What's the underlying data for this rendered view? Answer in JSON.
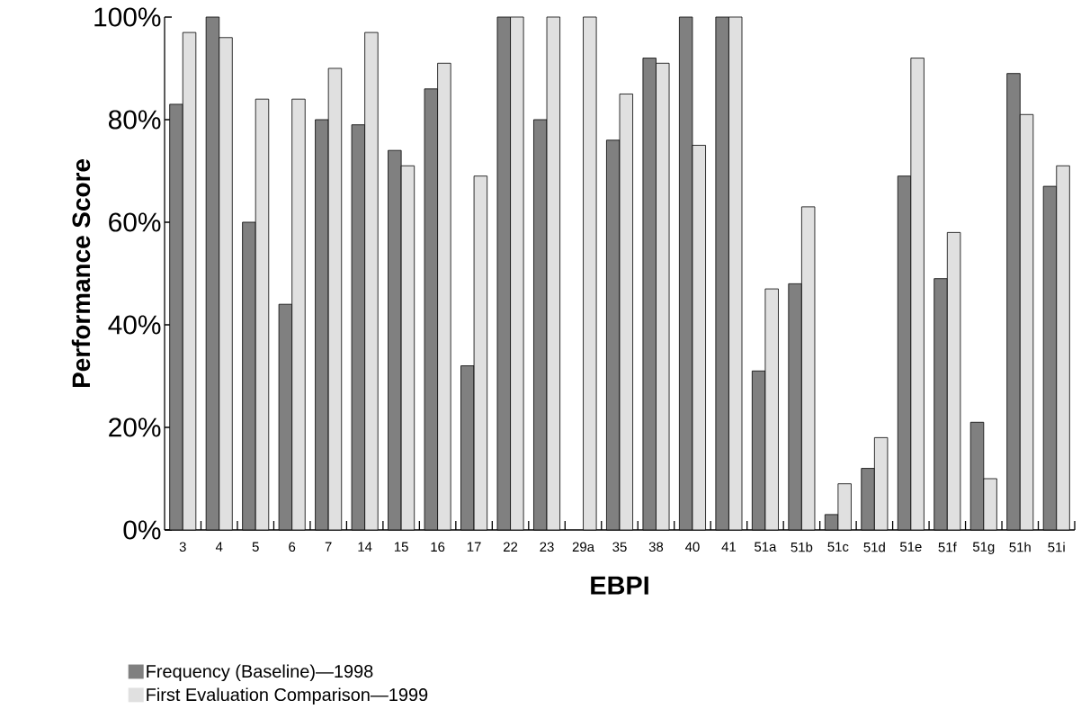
{
  "chart_data": {
    "type": "bar",
    "xlabel": "EBPI",
    "ylabel": "Performance Score",
    "categories": [
      "3",
      "4",
      "5",
      "6",
      "7",
      "14",
      "15",
      "16",
      "17",
      "22",
      "23",
      "29a",
      "35",
      "38",
      "40",
      "41",
      "51a",
      "51b",
      "51c",
      "51d",
      "51e",
      "51f",
      "51g",
      "51h",
      "51i"
    ],
    "series": [
      {
        "name": "Frequency (Baseline)—1998",
        "color": "#808080",
        "values": [
          83,
          100,
          60,
          44,
          80,
          79,
          74,
          86,
          32,
          100,
          80,
          null,
          76,
          92,
          100,
          100,
          31,
          48,
          3,
          12,
          69,
          49,
          21,
          89,
          67
        ]
      },
      {
        "name": "First Evaluation Comparison—1999",
        "color": "#e0e0e0",
        "values": [
          97,
          96,
          84,
          84,
          90,
          97,
          71,
          91,
          69,
          100,
          100,
          100,
          85,
          91,
          75,
          100,
          47,
          63,
          9,
          18,
          92,
          58,
          10,
          81,
          71
        ]
      }
    ],
    "ylim": [
      0,
      100
    ],
    "yticks": [
      {
        "value": 0,
        "label": "0%"
      },
      {
        "value": 20,
        "label": "20%"
      },
      {
        "value": 40,
        "label": "40%"
      },
      {
        "value": 60,
        "label": "60%"
      },
      {
        "value": 80,
        "label": "80%"
      },
      {
        "value": 100,
        "label": "100%"
      }
    ],
    "grid": false,
    "legend": "bottom"
  }
}
